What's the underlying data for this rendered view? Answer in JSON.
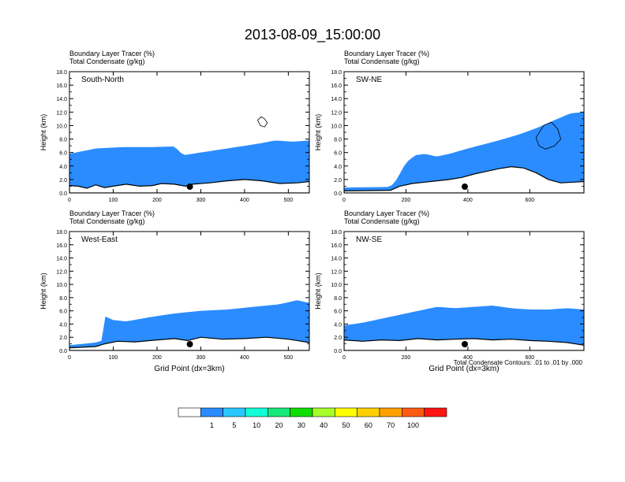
{
  "title": "2013-08-09_15:00:00",
  "panel_header": {
    "line1": "Boundary Layer Tracer   (%)",
    "line2": "Total Condensate   (g/kg)"
  },
  "ylabel": "Height (km)",
  "xlabel": "Grid Point (dx=3km)",
  "contour_note": "Total Condensate Contours: .01 to .01 by .000",
  "colorbar": {
    "colors": [
      "#ffffff",
      "#2a8cff",
      "#28c8ff",
      "#12ffd8",
      "#18e878",
      "#10dd00",
      "#a8ff2c",
      "#ffff00",
      "#ffd000",
      "#ffa000",
      "#ff5a14",
      "#ff1414"
    ],
    "labels": [
      "1",
      "5",
      "10",
      "20",
      "30",
      "40",
      "50",
      "60",
      "70",
      "100"
    ]
  },
  "chart_data": [
    {
      "type": "heatmap",
      "name": "South-North",
      "ylim": [
        0,
        18
      ],
      "xlim": [
        0,
        548
      ],
      "xticks": [
        0,
        100,
        200,
        300,
        400,
        500
      ],
      "yticks": [
        "0.0",
        "2.0",
        "4.0",
        "6.0",
        "8.0",
        "10.0",
        "12.0",
        "14.0",
        "16.0",
        "18.0"
      ],
      "marker_x": 275,
      "tracer_top": [
        [
          0,
          5.8
        ],
        [
          30,
          6.2
        ],
        [
          60,
          6.6
        ],
        [
          120,
          6.8
        ],
        [
          180,
          6.8
        ],
        [
          240,
          6.9
        ],
        [
          260,
          5.6
        ],
        [
          300,
          6.0
        ],
        [
          350,
          6.5
        ],
        [
          400,
          7.0
        ],
        [
          440,
          7.4
        ],
        [
          470,
          7.8
        ],
        [
          510,
          7.6
        ],
        [
          548,
          7.8
        ]
      ],
      "terrain": [
        [
          0,
          1.1
        ],
        [
          20,
          1.0
        ],
        [
          40,
          0.7
        ],
        [
          60,
          1.2
        ],
        [
          80,
          0.8
        ],
        [
          100,
          1.0
        ],
        [
          130,
          1.3
        ],
        [
          160,
          1.0
        ],
        [
          190,
          1.1
        ],
        [
          210,
          1.4
        ],
        [
          240,
          1.3
        ],
        [
          265,
          1.0
        ],
        [
          280,
          1.3
        ],
        [
          320,
          1.5
        ],
        [
          360,
          1.8
        ],
        [
          400,
          2.0
        ],
        [
          440,
          1.8
        ],
        [
          480,
          1.4
        ],
        [
          520,
          1.5
        ],
        [
          548,
          1.7
        ]
      ],
      "cloud_contours": [
        [
          [
            430,
            10.8
          ],
          [
            438,
            11.3
          ],
          [
            446,
            11.0
          ],
          [
            452,
            10.4
          ],
          [
            446,
            9.8
          ],
          [
            436,
            10.0
          ]
        ]
      ]
    },
    {
      "type": "heatmap",
      "name": "SW-NE",
      "ylim": [
        0,
        18
      ],
      "xlim": [
        0,
        775
      ],
      "xticks": [
        0,
        200,
        400,
        600
      ],
      "yticks": [
        "0.0",
        "2.0",
        "4.0",
        "6.0",
        "8.0",
        "10.0",
        "12.0",
        "14.0",
        "16.0",
        "18.0"
      ],
      "marker_x": 390,
      "tracer_top": [
        [
          0,
          0.8
        ],
        [
          150,
          0.9
        ],
        [
          170,
          2.0
        ],
        [
          200,
          4.5
        ],
        [
          230,
          5.6
        ],
        [
          260,
          5.8
        ],
        [
          300,
          5.4
        ],
        [
          340,
          5.8
        ],
        [
          400,
          6.6
        ],
        [
          450,
          7.2
        ],
        [
          500,
          7.8
        ],
        [
          560,
          8.6
        ],
        [
          620,
          9.6
        ],
        [
          680,
          10.8
        ],
        [
          730,
          11.8
        ],
        [
          775,
          12.0
        ]
      ],
      "terrain": [
        [
          0,
          0.3
        ],
        [
          150,
          0.4
        ],
        [
          180,
          1.0
        ],
        [
          220,
          1.4
        ],
        [
          260,
          1.6
        ],
        [
          300,
          1.8
        ],
        [
          340,
          2.0
        ],
        [
          380,
          2.3
        ],
        [
          420,
          2.8
        ],
        [
          460,
          3.2
        ],
        [
          500,
          3.6
        ],
        [
          540,
          3.9
        ],
        [
          580,
          3.7
        ],
        [
          620,
          3.0
        ],
        [
          660,
          2.0
        ],
        [
          700,
          1.5
        ],
        [
          740,
          1.6
        ],
        [
          775,
          1.7
        ]
      ],
      "cloud_contours": [
        [
          [
            620,
            8.2
          ],
          [
            645,
            10.0
          ],
          [
            670,
            10.5
          ],
          [
            690,
            9.5
          ],
          [
            700,
            8.0
          ],
          [
            680,
            7.0
          ],
          [
            650,
            6.5
          ],
          [
            630,
            7.0
          ]
        ]
      ]
    },
    {
      "type": "heatmap",
      "name": "West-East",
      "ylim": [
        0,
        18
      ],
      "xlim": [
        0,
        548
      ],
      "xticks": [
        0,
        100,
        200,
        300,
        400,
        500
      ],
      "yticks": [
        "0.0",
        "2.0",
        "4.0",
        "6.0",
        "8.0",
        "10.0",
        "12.0",
        "14.0",
        "16.0",
        "18.0"
      ],
      "marker_x": 275,
      "tracer_top": [
        [
          0,
          0.8
        ],
        [
          60,
          1.2
        ],
        [
          75,
          1.5
        ],
        [
          80,
          5.2
        ],
        [
          100,
          4.6
        ],
        [
          130,
          4.4
        ],
        [
          180,
          5.0
        ],
        [
          240,
          5.6
        ],
        [
          300,
          6.0
        ],
        [
          360,
          6.2
        ],
        [
          420,
          6.6
        ],
        [
          480,
          7.0
        ],
        [
          520,
          7.6
        ],
        [
          548,
          7.2
        ]
      ],
      "terrain": [
        [
          0,
          0.4
        ],
        [
          60,
          0.6
        ],
        [
          80,
          1.0
        ],
        [
          110,
          1.4
        ],
        [
          150,
          1.3
        ],
        [
          200,
          1.6
        ],
        [
          240,
          1.8
        ],
        [
          270,
          1.5
        ],
        [
          300,
          2.0
        ],
        [
          350,
          1.7
        ],
        [
          400,
          1.8
        ],
        [
          450,
          2.0
        ],
        [
          500,
          1.7
        ],
        [
          548,
          1.2
        ]
      ],
      "cloud_contours": []
    },
    {
      "type": "heatmap",
      "name": "NW-SE",
      "ylim": [
        0,
        18
      ],
      "xlim": [
        0,
        775
      ],
      "xticks": [
        0,
        200,
        400,
        600
      ],
      "yticks": [
        "0.0",
        "2.0",
        "4.0",
        "6.0",
        "8.0",
        "10.0",
        "12.0",
        "14.0",
        "16.0",
        "18.0"
      ],
      "marker_x": 390,
      "tracer_top": [
        [
          0,
          3.8
        ],
        [
          60,
          4.2
        ],
        [
          120,
          4.8
        ],
        [
          180,
          5.4
        ],
        [
          240,
          6.0
        ],
        [
          300,
          6.6
        ],
        [
          360,
          6.4
        ],
        [
          420,
          6.6
        ],
        [
          480,
          6.8
        ],
        [
          540,
          6.4
        ],
        [
          600,
          6.2
        ],
        [
          660,
          6.2
        ],
        [
          720,
          6.4
        ],
        [
          775,
          6.2
        ]
      ],
      "terrain": [
        [
          0,
          1.6
        ],
        [
          60,
          1.4
        ],
        [
          120,
          1.6
        ],
        [
          180,
          1.5
        ],
        [
          240,
          1.8
        ],
        [
          300,
          1.6
        ],
        [
          360,
          1.7
        ],
        [
          420,
          1.8
        ],
        [
          480,
          1.6
        ],
        [
          540,
          1.7
        ],
        [
          600,
          1.5
        ],
        [
          660,
          1.4
        ],
        [
          720,
          1.2
        ],
        [
          775,
          0.8
        ]
      ],
      "cloud_contours": []
    }
  ]
}
